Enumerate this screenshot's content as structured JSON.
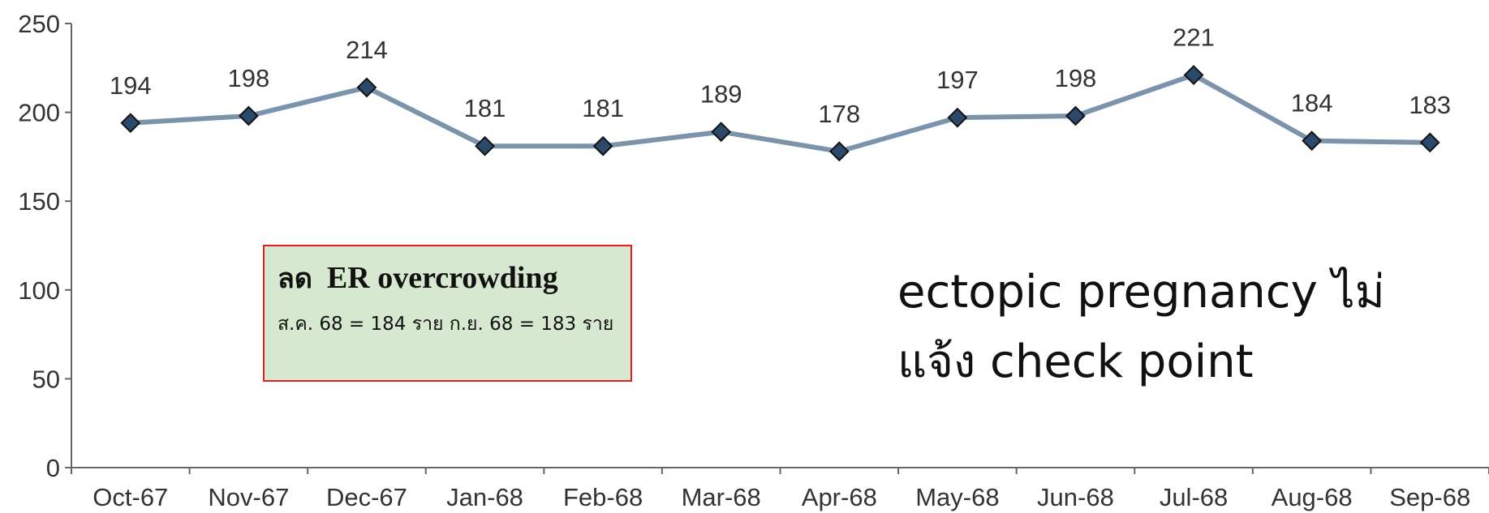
{
  "chart_data": {
    "type": "line",
    "categories": [
      "Oct-67",
      "Nov-67",
      "Dec-67",
      "Jan-68",
      "Feb-68",
      "Mar-68",
      "Apr-68",
      "May-68",
      "Jun-68",
      "Jul-68",
      "Aug-68",
      "Sep-68"
    ],
    "values": [
      194,
      198,
      214,
      181,
      181,
      189,
      178,
      197,
      198,
      221,
      184,
      183
    ],
    "color": "#7b93ab",
    "marker_color": "#2b4a6b",
    "ylim": [
      0,
      250
    ],
    "yticks": [
      0,
      50,
      100,
      150,
      200,
      250
    ],
    "annotations": {
      "box": {
        "title_thai": "ลด",
        "title": "ER overcrowding",
        "text": "ส.ค. 68  = 184 ราย ก.ย. 68  = 183 ราย"
      },
      "note": [
        "ectopic pregnancy ไม่",
        "แจ้ง check point"
      ]
    }
  }
}
